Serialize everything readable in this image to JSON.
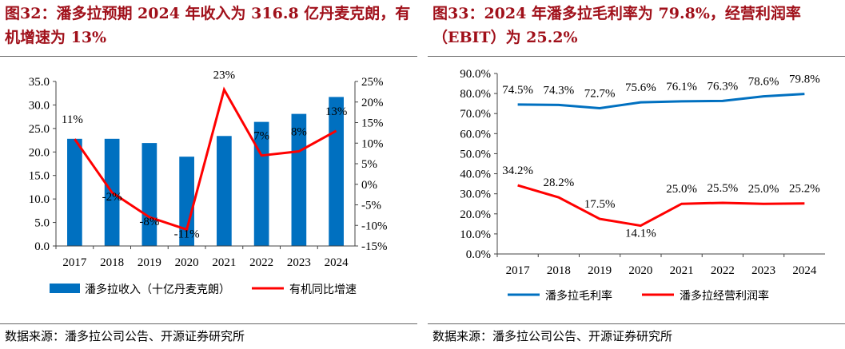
{
  "left": {
    "title": "图32：潘多拉预期 2024 年收入为 316.8 亿丹麦克朗，有机增速为 13%",
    "source": "数据来源：潘多拉公司公告、开源证券研究所"
  },
  "right": {
    "title": "图33：2024 年潘多拉毛利率为 79.8%，经营利润率（EBIT）为 25.2%",
    "source": "数据来源：潘多拉公司公告、开源证券研究所"
  },
  "chart_data": [
    {
      "type": "bar+line",
      "categories": [
        "2017",
        "2018",
        "2019",
        "2020",
        "2021",
        "2022",
        "2023",
        "2024"
      ],
      "series": [
        {
          "name": "潘多拉收入（十亿丹麦克朗）",
          "type": "bar",
          "axis": "left",
          "color": "#0070c0",
          "values": [
            22.8,
            22.8,
            21.9,
            19.0,
            23.4,
            26.4,
            28.1,
            31.7
          ]
        },
        {
          "name": "有机同比增速",
          "type": "line",
          "axis": "right",
          "color": "#ff0000",
          "values": [
            11,
            -2,
            -8,
            -11,
            23,
            7,
            8,
            13
          ],
          "labels": [
            "11%",
            "-2%",
            "-8%",
            "-11%",
            "23%",
            "7%",
            "8%",
            "13%"
          ]
        }
      ],
      "ylim": [
        0,
        35
      ],
      "yticks": [
        "0.0",
        "5.0",
        "10.0",
        "15.0",
        "20.0",
        "25.0",
        "30.0",
        "35.0"
      ],
      "y2lim": [
        -15,
        25
      ],
      "y2ticks": [
        "-15%",
        "-10%",
        "-5%",
        "0%",
        "5%",
        "10%",
        "15%",
        "20%",
        "25%"
      ],
      "legend": "bottom",
      "grid": false
    },
    {
      "type": "line",
      "categories": [
        "2017",
        "2018",
        "2019",
        "2020",
        "2021",
        "2022",
        "2023",
        "2024"
      ],
      "series": [
        {
          "name": "潘多拉毛利率",
          "color": "#0070c0",
          "values": [
            74.5,
            74.3,
            72.7,
            75.6,
            76.1,
            76.3,
            78.6,
            79.8
          ],
          "labels": [
            "74.5%",
            "74.3%",
            "72.7%",
            "75.6%",
            "76.1%",
            "76.3%",
            "78.6%",
            "79.8%"
          ]
        },
        {
          "name": "潘多拉经营利润率",
          "color": "#ff0000",
          "values": [
            34.2,
            28.2,
            17.5,
            14.1,
            25.0,
            25.5,
            25.0,
            25.2
          ],
          "labels": [
            "34.2%",
            "28.2%",
            "17.5%",
            "14.1%",
            "25.0%",
            "25.5%",
            "25.0%",
            "25.2%"
          ]
        }
      ],
      "ylim": [
        0,
        90
      ],
      "yticks": [
        "0.0%",
        "10.0%",
        "20.0%",
        "30.0%",
        "40.0%",
        "50.0%",
        "60.0%",
        "70.0%",
        "80.0%",
        "90.0%"
      ],
      "legend": "bottom",
      "grid": false
    }
  ]
}
